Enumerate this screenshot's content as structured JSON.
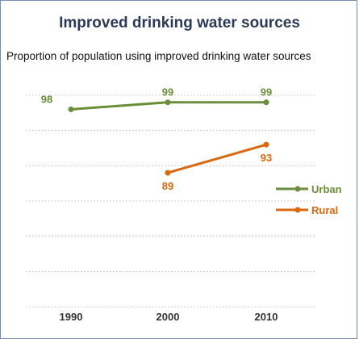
{
  "chart_data": {
    "type": "line",
    "title": "Improved drinking water sources",
    "subtitle": "Proportion of population using improved drinking water sources",
    "x": [
      "1990",
      "2000",
      "2010"
    ],
    "series": [
      {
        "name": "Urban",
        "color": "#6b8e3a",
        "values": [
          98,
          99,
          99
        ]
      },
      {
        "name": "Rural",
        "color": "#d9680f",
        "values": [
          null,
          89,
          93
        ]
      }
    ],
    "ylim": [
      70,
      100
    ],
    "grid": true,
    "legend": "right"
  }
}
